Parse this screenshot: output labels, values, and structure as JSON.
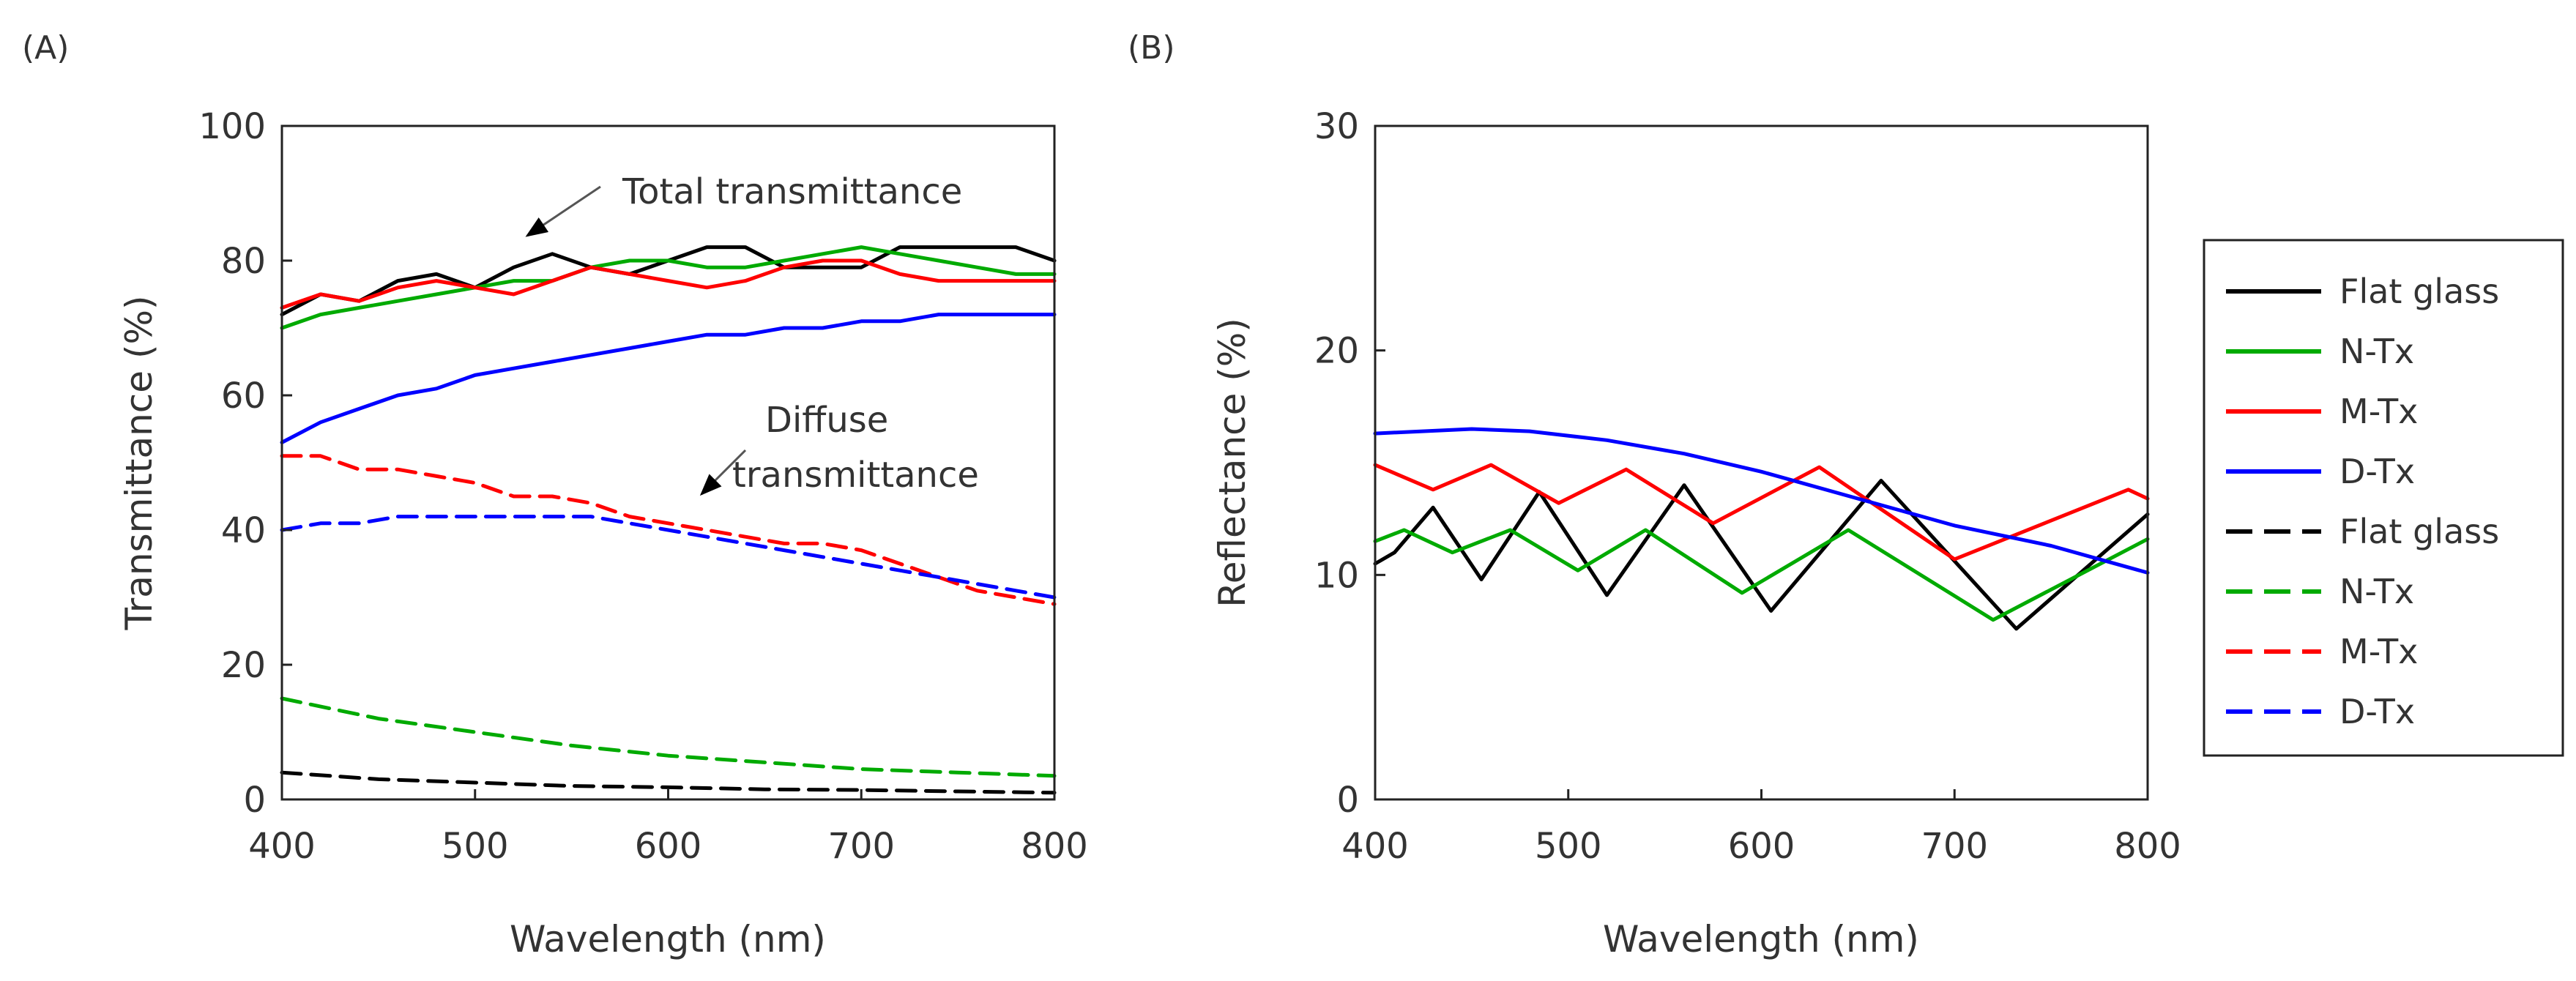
{
  "chart_data": [
    {
      "panel_label": "(A)",
      "type": "line",
      "xlabel": "Wavelength (nm)",
      "ylabel": "Transmittance (%)",
      "xlim": [
        400,
        800
      ],
      "ylim": [
        0,
        100
      ],
      "xticks": [
        400,
        500,
        600,
        700,
        800
      ],
      "yticks": [
        0,
        20,
        40,
        60,
        80,
        100
      ],
      "grid": false,
      "annotations": [
        {
          "text": "Total transmittance",
          "arrow_to": [
            520,
            83
          ]
        },
        {
          "text": "Diffuse",
          "arrow_to": [
            610,
            44
          ]
        },
        {
          "text": "transmittance"
        }
      ],
      "series": [
        {
          "name": "Flat glass",
          "style": "solid",
          "color": "#000000",
          "x": [
            400,
            420,
            440,
            460,
            480,
            500,
            520,
            540,
            560,
            580,
            600,
            620,
            640,
            660,
            680,
            700,
            720,
            740,
            760,
            780,
            800
          ],
          "y": [
            72,
            75,
            74,
            77,
            78,
            76,
            79,
            81,
            79,
            78,
            80,
            82,
            82,
            79,
            79,
            79,
            82,
            82,
            82,
            82,
            80
          ]
        },
        {
          "name": "N-Tx",
          "style": "solid",
          "color": "#00aa00",
          "x": [
            400,
            420,
            440,
            460,
            480,
            500,
            520,
            540,
            560,
            580,
            600,
            620,
            640,
            660,
            680,
            700,
            720,
            740,
            760,
            780,
            800
          ],
          "y": [
            70,
            72,
            73,
            74,
            75,
            76,
            77,
            77,
            79,
            80,
            80,
            79,
            79,
            80,
            81,
            82,
            81,
            80,
            79,
            78,
            78
          ]
        },
        {
          "name": "M-Tx",
          "style": "solid",
          "color": "#ff0000",
          "x": [
            400,
            420,
            440,
            460,
            480,
            500,
            520,
            540,
            560,
            580,
            600,
            620,
            640,
            660,
            680,
            700,
            720,
            740,
            760,
            780,
            800
          ],
          "y": [
            73,
            75,
            74,
            76,
            77,
            76,
            75,
            77,
            79,
            78,
            77,
            76,
            77,
            79,
            80,
            80,
            78,
            77,
            77,
            77,
            77
          ]
        },
        {
          "name": "D-Tx",
          "style": "solid",
          "color": "#0000ff",
          "x": [
            400,
            420,
            440,
            460,
            480,
            500,
            520,
            540,
            560,
            580,
            600,
            620,
            640,
            660,
            680,
            700,
            720,
            740,
            760,
            780,
            800
          ],
          "y": [
            53,
            56,
            58,
            60,
            61,
            63,
            64,
            65,
            66,
            67,
            68,
            69,
            69,
            70,
            70,
            71,
            71,
            72,
            72,
            72,
            72
          ]
        },
        {
          "name": "Flat glass",
          "style": "dashed",
          "color": "#000000",
          "x": [
            400,
            450,
            500,
            550,
            600,
            650,
            700,
            750,
            800
          ],
          "y": [
            4,
            3,
            2.5,
            2,
            1.8,
            1.5,
            1.4,
            1.2,
            1
          ]
        },
        {
          "name": "N-Tx",
          "style": "dashed",
          "color": "#00aa00",
          "x": [
            400,
            450,
            500,
            550,
            600,
            650,
            700,
            750,
            800
          ],
          "y": [
            15,
            12,
            10,
            8,
            6.5,
            5.5,
            4.5,
            4,
            3.5
          ]
        },
        {
          "name": "M-Tx",
          "style": "dashed",
          "color": "#ff0000",
          "x": [
            400,
            420,
            440,
            460,
            480,
            500,
            520,
            540,
            560,
            580,
            600,
            620,
            640,
            660,
            680,
            700,
            720,
            740,
            760,
            780,
            800
          ],
          "y": [
            51,
            51,
            49,
            49,
            48,
            47,
            45,
            45,
            44,
            42,
            41,
            40,
            39,
            38,
            38,
            37,
            35,
            33,
            31,
            30,
            29
          ]
        },
        {
          "name": "D-Tx",
          "style": "dashed",
          "color": "#0000ff",
          "x": [
            400,
            420,
            440,
            460,
            480,
            500,
            520,
            540,
            560,
            580,
            600,
            620,
            640,
            660,
            680,
            700,
            720,
            740,
            760,
            780,
            800
          ],
          "y": [
            40,
            41,
            41,
            42,
            42,
            42,
            42,
            42,
            42,
            41,
            40,
            39,
            38,
            37,
            36,
            35,
            34,
            33,
            32,
            31,
            30
          ]
        }
      ]
    },
    {
      "panel_label": "(B)",
      "type": "line",
      "xlabel": "Wavelength (nm)",
      "ylabel": "Reflectance (%)",
      "xlim": [
        400,
        800
      ],
      "ylim": [
        0,
        30
      ],
      "xticks": [
        400,
        500,
        600,
        700,
        800
      ],
      "yticks": [
        0,
        10,
        20,
        30
      ],
      "grid": false,
      "series": [
        {
          "name": "Flat glass",
          "style": "solid",
          "color": "#000000",
          "x": [
            400,
            410,
            430,
            455,
            485,
            520,
            560,
            605,
            662,
            732,
            800
          ],
          "y": [
            10.5,
            11,
            13,
            9.8,
            13.7,
            9.1,
            14,
            8.4,
            14.2,
            7.6,
            12.7
          ]
        },
        {
          "name": "N-Tx",
          "style": "solid",
          "color": "#00aa00",
          "x": [
            400,
            415,
            440,
            470,
            505,
            540,
            590,
            645,
            720,
            800
          ],
          "y": [
            11.5,
            12,
            11,
            12,
            10.2,
            12,
            9.2,
            12,
            8,
            11.6
          ]
        },
        {
          "name": "M-Tx",
          "style": "solid",
          "color": "#ff0000",
          "x": [
            400,
            430,
            460,
            495,
            530,
            575,
            630,
            700,
            790,
            800
          ],
          "y": [
            14.9,
            13.8,
            14.9,
            13.2,
            14.7,
            12.3,
            14.8,
            10.7,
            13.8,
            13.4
          ]
        },
        {
          "name": "D-Tx",
          "style": "solid",
          "color": "#0000ff",
          "x": [
            400,
            450,
            480,
            520,
            560,
            600,
            650,
            700,
            750,
            800
          ],
          "y": [
            16.3,
            16.5,
            16.4,
            16,
            15.4,
            14.6,
            13.4,
            12.2,
            11.3,
            10.1
          ]
        }
      ],
      "legend": {
        "position": "right",
        "entries": [
          {
            "label": "Flat glass",
            "style": "solid",
            "color": "#000000"
          },
          {
            "label": "N-Tx",
            "style": "solid",
            "color": "#00aa00"
          },
          {
            "label": "M-Tx",
            "style": "solid",
            "color": "#ff0000"
          },
          {
            "label": "D-Tx",
            "style": "solid",
            "color": "#0000ff"
          },
          {
            "label": "Flat glass",
            "style": "dashed",
            "color": "#000000"
          },
          {
            "label": "N-Tx",
            "style": "dashed",
            "color": "#00aa00"
          },
          {
            "label": "M-Tx",
            "style": "dashed",
            "color": "#ff0000"
          },
          {
            "label": "D-Tx",
            "style": "dashed",
            "color": "#0000ff"
          }
        ]
      }
    }
  ]
}
